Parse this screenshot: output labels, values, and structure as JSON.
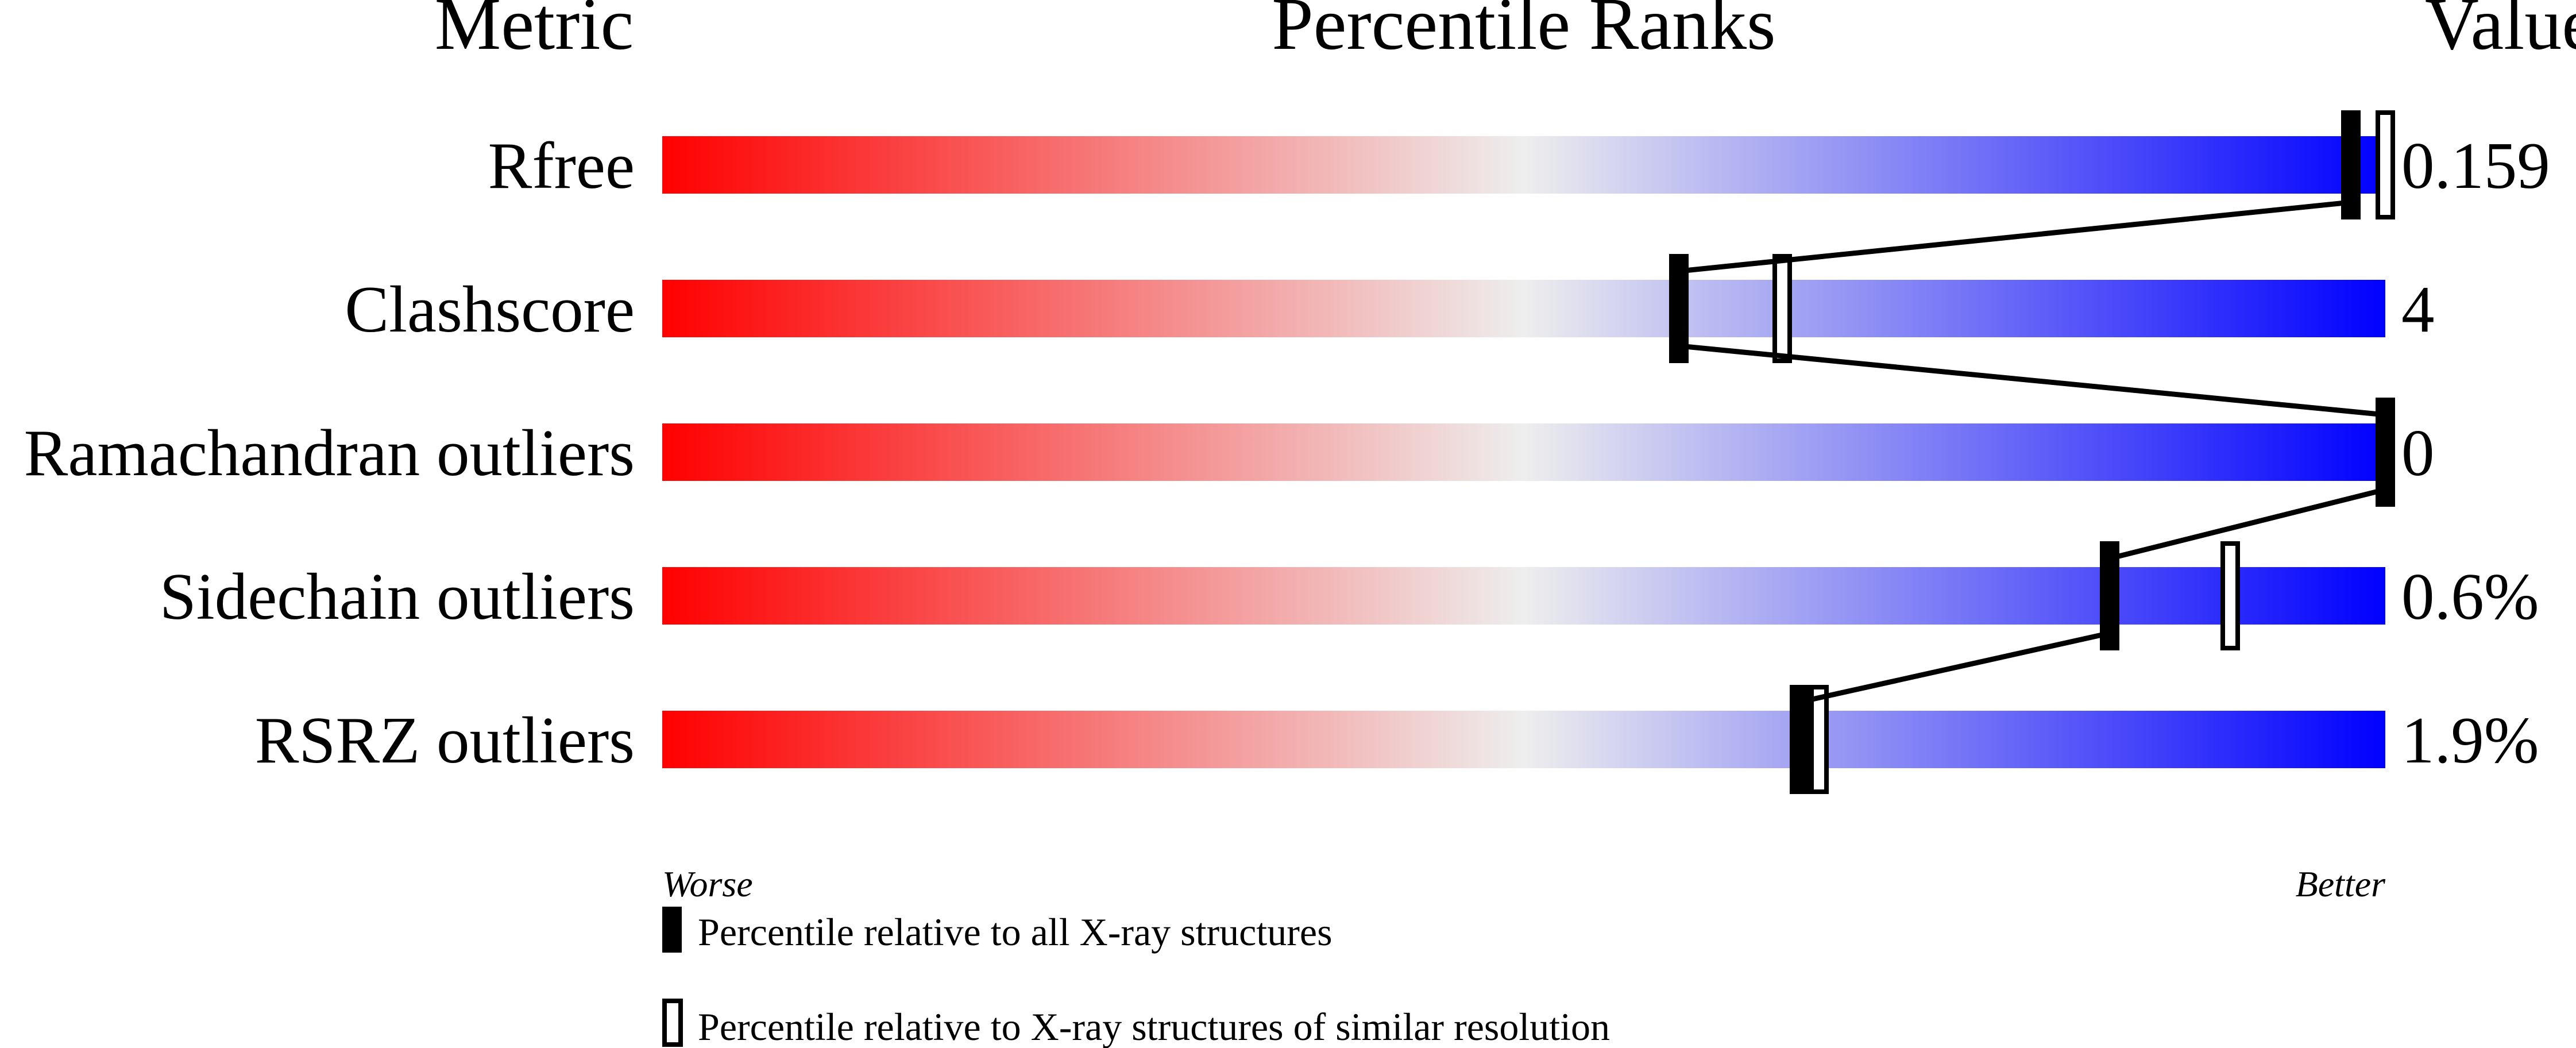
{
  "chart_data": {
    "type": "percentile-slider",
    "headers": {
      "metric": "Metric",
      "ranks": "Percentile Ranks",
      "value": "Value"
    },
    "xlim": [
      0,
      100
    ],
    "axis_labels": {
      "left": "Worse",
      "right": "Better"
    },
    "colors": {
      "worse": "#ff0000",
      "middle": "#eeeeee",
      "better": "#0000ff",
      "marker": "#000000"
    },
    "rows": [
      {
        "metric": "Rfree",
        "value": "0.159",
        "percentile_all": 98,
        "percentile_similar": 100
      },
      {
        "metric": "Clashscore",
        "value": "4",
        "percentile_all": 59,
        "percentile_similar": 65
      },
      {
        "metric": "Ramachandran outliers",
        "value": "0",
        "percentile_all": 100,
        "percentile_similar": 100
      },
      {
        "metric": "Sidechain outliers",
        "value": "0.6%",
        "percentile_all": 84,
        "percentile_similar": 91
      },
      {
        "metric": "RSRZ outliers",
        "value": "1.9%",
        "percentile_all": 66,
        "percentile_similar": 67
      }
    ],
    "legend": [
      {
        "marker": "filled",
        "label": "Percentile relative to all X-ray structures"
      },
      {
        "marker": "open",
        "label": "Percentile relative to X-ray structures of similar resolution"
      }
    ]
  }
}
